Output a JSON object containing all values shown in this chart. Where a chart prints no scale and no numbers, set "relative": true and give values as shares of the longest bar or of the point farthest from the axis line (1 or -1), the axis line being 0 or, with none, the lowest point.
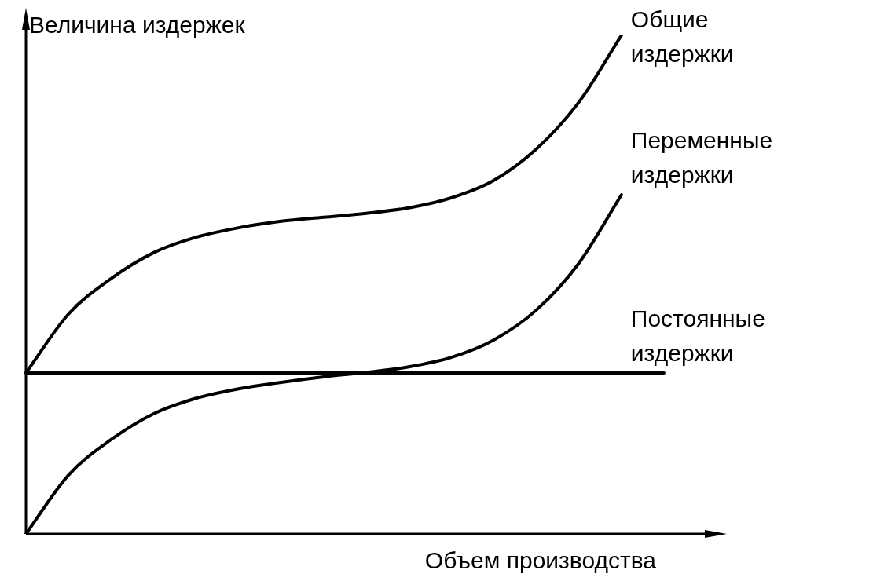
{
  "chart_data": {
    "type": "line",
    "relative": true,
    "xlabel": "Объем производства",
    "ylabel": "Величина издержек",
    "categories": [
      null,
      null,
      null,
      null,
      null,
      null,
      null,
      null,
      null,
      null,
      null,
      null,
      null,
      null,
      null,
      null
    ],
    "marker": "none",
    "line_style": "solid",
    "series": [
      {
        "name": "Общие издержки",
        "color": "#000000",
        "values": [
          0.323,
          0.441,
          0.512,
          0.564,
          0.595,
          0.614,
          0.627,
          0.635,
          0.643,
          0.654,
          0.674,
          0.709,
          0.772,
          0.866,
          1,
          null
        ]
      },
      {
        "name": "Переменные издержки",
        "color": "#000000",
        "values": [
          0,
          0.118,
          0.189,
          0.241,
          0.272,
          0.291,
          0.304,
          0.315,
          0.324,
          0.335,
          0.354,
          0.389,
          0.449,
          0.543,
          0.68,
          null
        ]
      },
      {
        "name": "Постоянные издержки",
        "color": "#000000",
        "values": [
          0.323,
          0.323,
          0.323,
          0.323,
          0.323,
          0.323,
          0.323,
          0.323,
          0.323,
          0.323,
          0.323,
          0.323,
          0.323,
          0.323,
          0.323,
          0.323
        ]
      }
    ]
  }
}
